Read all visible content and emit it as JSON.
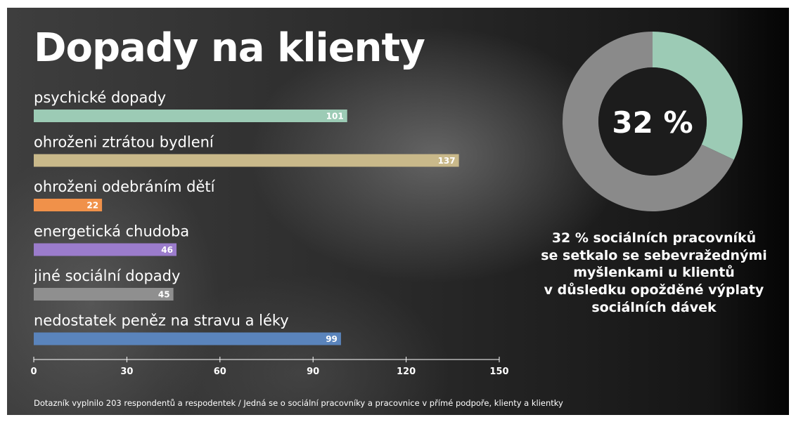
{
  "title": "Dopady na klienty",
  "chart_data": [
    {
      "type": "bar",
      "orientation": "horizontal",
      "title": "Dopady na klienty",
      "categories": [
        "psychické dopady",
        "ohroženi ztrátou bydlení",
        "ohroženi odebráním dětí",
        "energetická chudoba",
        "jiné sociální dopady",
        "nedostatek peněz na stravu a léky"
      ],
      "values": [
        101,
        137,
        22,
        46,
        45,
        99
      ],
      "colors": [
        "#9ccbb5",
        "#c9b98a",
        "#f0914a",
        "#9b7ccc",
        "#8f8f8f",
        "#5a84bc"
      ],
      "xlim": [
        0,
        150
      ],
      "ticks": [
        "0",
        "30",
        "60",
        "90",
        "120",
        "150"
      ],
      "grid": false,
      "xlabel": "",
      "ylabel": ""
    },
    {
      "type": "pie",
      "variant": "donut",
      "values": [
        32,
        68
      ],
      "colors": [
        "#9ccbb5",
        "#8a8a8a"
      ],
      "center_text": "32 %"
    }
  ],
  "caption": {
    "lines": [
      "32 % sociálních pracovníků",
      "se setkalo se sebevražednými",
      "myšlenkami u klientů",
      "v důsledku opožděné výplaty",
      "sociálních dávek"
    ]
  },
  "footnote": "Dotazník vyplnilo 203 respondentů a respodentek / Jedná se o sociální pracovníky a pracovnice v přímé podpoře, klienty a klientky"
}
